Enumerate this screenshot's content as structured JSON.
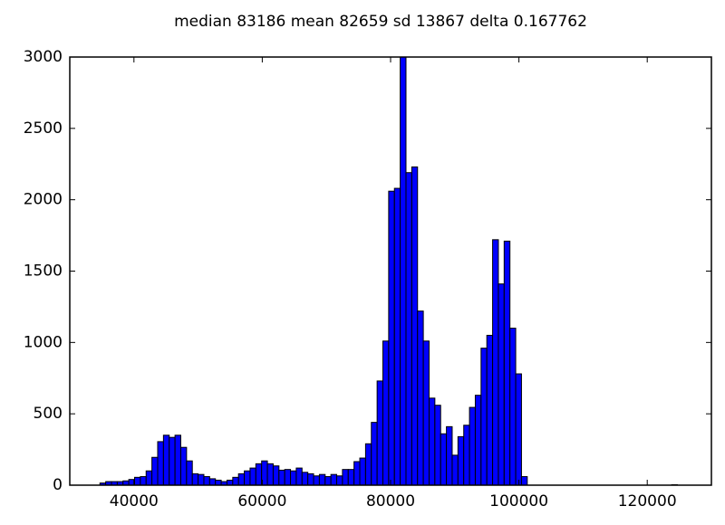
{
  "chart_data": {
    "type": "histogram",
    "title": "median 83186 mean 82659 sd 13867 delta 0.167762",
    "bins": [
      34700,
      35600,
      36500,
      37400,
      38300,
      39200,
      40100,
      41000,
      41900,
      42800,
      43700,
      44600,
      45500,
      46400,
      47300,
      48200,
      49100,
      50000,
      50900,
      51800,
      52700,
      53600,
      54500,
      55400,
      56300,
      57200,
      58100,
      59000,
      59900,
      60800,
      61700,
      62600,
      63500,
      64400,
      65300,
      66200,
      67100,
      68000,
      68900,
      69800,
      70700,
      71600,
      72500,
      73400,
      74300,
      75200,
      76100,
      77000,
      77900,
      78800,
      79700,
      80600,
      81500,
      82400,
      83300,
      84200,
      85100,
      86000,
      86900,
      87800,
      88700,
      89600,
      90500,
      91400,
      92300,
      93200,
      94100,
      95000,
      95900,
      96800,
      97700,
      98600,
      99500,
      100400,
      101300,
      102200,
      103100,
      104000,
      104900,
      105800,
      106700,
      107600,
      108500,
      109400,
      110300,
      111200,
      112100,
      113000,
      113900,
      114800,
      115700,
      116600,
      117500,
      118400,
      119300,
      120200,
      121100,
      122000,
      122900,
      123800,
      124700
    ],
    "values": [
      15,
      25,
      25,
      25,
      30,
      40,
      55,
      60,
      100,
      195,
      305,
      350,
      335,
      350,
      265,
      170,
      80,
      75,
      60,
      45,
      35,
      25,
      35,
      55,
      80,
      100,
      120,
      150,
      170,
      150,
      135,
      105,
      110,
      100,
      120,
      90,
      80,
      65,
      75,
      60,
      75,
      65,
      110,
      110,
      165,
      190,
      290,
      440,
      730,
      1010,
      2060,
      2080,
      3000,
      2190,
      2230,
      1220,
      1010,
      610,
      560,
      360,
      410,
      210,
      340,
      420,
      545,
      630,
      960,
      1050,
      1720,
      1410,
      1710,
      1100,
      780,
      60,
      0,
      0,
      0,
      0,
      0,
      0,
      0,
      0,
      0,
      0,
      0,
      0,
      0,
      0,
      0,
      0,
      0,
      0,
      0,
      0,
      0,
      0,
      0,
      0,
      0,
      3
    ],
    "color": "#0000ff",
    "edgecolor": "#000000",
    "xlim": [
      30000,
      130000
    ],
    "xticks": [
      40000,
      60000,
      80000,
      100000,
      120000
    ],
    "ylim": [
      0,
      3000
    ],
    "yticks": [
      0,
      500,
      1000,
      1500,
      2000,
      2500,
      3000
    ],
    "grid": false
  }
}
